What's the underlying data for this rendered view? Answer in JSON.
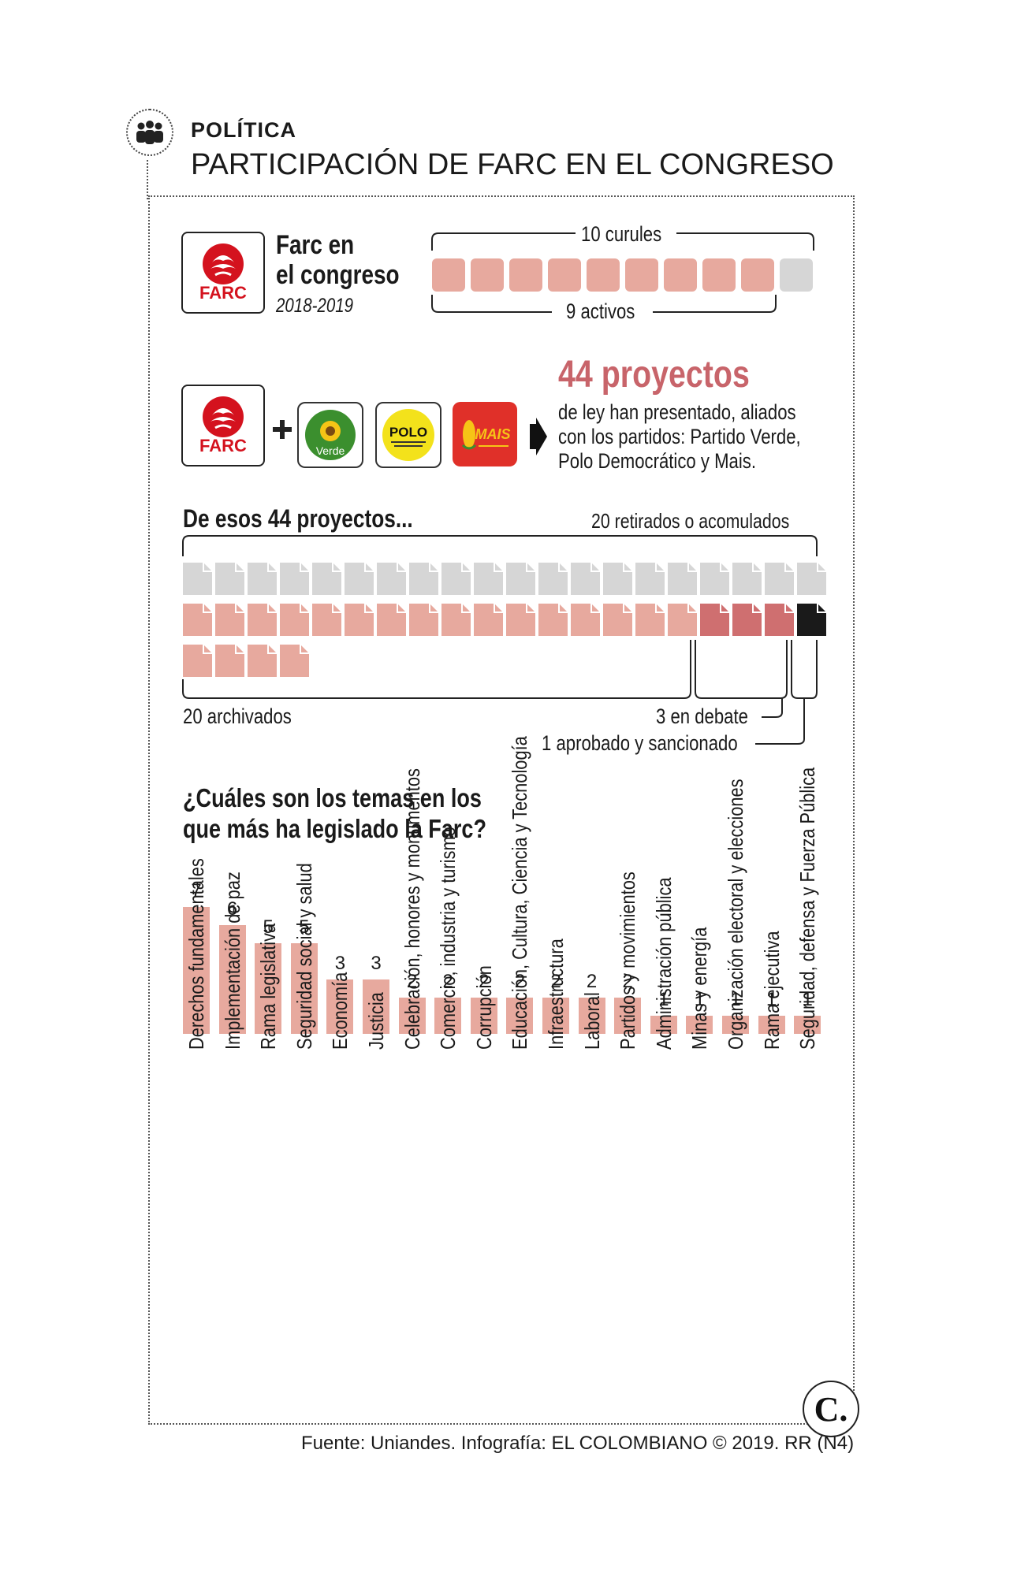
{
  "header": {
    "section": "POLÍTICA",
    "title": "PARTICIPACIÓN DE FARC EN EL CONGRESO",
    "icon": "people-group-icon"
  },
  "seats": {
    "title_line1": "Farc en",
    "title_line2": "el congreso",
    "period": "2018-2019",
    "total_label": "10 curules",
    "active_label": "9 activos",
    "total": 10,
    "active": 9,
    "logo_text": "FARC"
  },
  "alliance": {
    "headline": "44 proyectos",
    "description_lines": [
      "de ley han presentado, aliados",
      "con los partidos: Partido Verde,",
      "Polo Democrático y Mais."
    ],
    "logos": {
      "farc": "FARC",
      "verde": "Verde",
      "polo": "POLO",
      "mais": "MAIS"
    }
  },
  "projects": {
    "heading": "De esos 44 proyectos...",
    "retirados_label": "20 retirados o acomulados",
    "archivados_label": "20 archivados",
    "debate_label": "3 en debate",
    "aprobado_label": "1 aprobado y sancionado",
    "retirados": 20,
    "archivados": 20,
    "debate": 3,
    "aprobado": 1
  },
  "topics": {
    "question_line1": "¿Cuáles son los temas en los",
    "question_line2": "que más ha legislado la Farc?"
  },
  "chart_data": {
    "type": "bar",
    "title": "¿Cuáles son los temas en los que más ha legislado la Farc?",
    "categories": [
      "Derechos fundamentales",
      "Implementación de paz",
      "Rama legislativa",
      "Seguridad social y salud",
      "Economía",
      "Justicia",
      "Celebración, honores y monumentos",
      "Comercio, industria y turismo",
      "Corrupción",
      "Educación, Cultura, Ciencia y Tecnología",
      "Infraestructura",
      "Laboral",
      "Partidos y movimientos",
      "Administración pública",
      "Minas y energía",
      "Organización electoral y elecciones",
      "Rama ejecutiva",
      "Seguridad, defensa y Fuerza Pública"
    ],
    "values": [
      7,
      6,
      5,
      5,
      3,
      3,
      2,
      2,
      2,
      2,
      2,
      2,
      2,
      1,
      1,
      1,
      1,
      1
    ],
    "ylim": [
      0,
      7
    ],
    "xlabel": "",
    "ylabel": ""
  },
  "colors": {
    "pink": "#e7a99e",
    "dark_pink": "#cf6f70",
    "gray": "#d6d6d6",
    "headline_red": "#c8646a",
    "farc_red": "#d4121e"
  },
  "footer": {
    "credit": "Fuente: Uniandes. Infografía: EL COLOMBIANO © 2019. RR (N4)",
    "logo_letter": "C."
  }
}
